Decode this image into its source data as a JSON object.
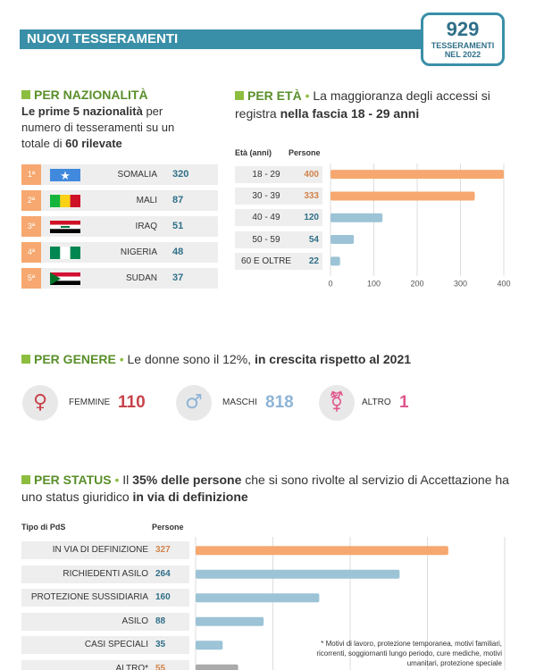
{
  "header": {
    "title": "NUOVI TESSERAMENTI",
    "total_value": "929",
    "total_label_1": "TESSERAMENTI",
    "total_label_2": "NEL 2022"
  },
  "nationality": {
    "heading": "PER NAZIONALITÀ",
    "desc_bold_1": "Le prime 5 nazionalità",
    "desc_text_1": " per numero di tesseramenti su un totale di ",
    "desc_bold_2": "60 rilevate",
    "rows": [
      {
        "rank": "1ª",
        "flag": "somalia-flag-icon",
        "name": "SOMALIA",
        "value": "320"
      },
      {
        "rank": "2ª",
        "flag": "mali-flag-icon",
        "name": "MALI",
        "value": "87"
      },
      {
        "rank": "3ª",
        "flag": "iraq-flag-icon",
        "name": "IRAQ",
        "value": "51"
      },
      {
        "rank": "4ª",
        "flag": "nigeria-flag-icon",
        "name": "NIGERIA",
        "value": "48"
      },
      {
        "rank": "5ª",
        "flag": "sudan-flag-icon",
        "name": "SUDAN",
        "value": "37"
      }
    ]
  },
  "age": {
    "heading": "PER ETÀ",
    "text_1": "La maggioranza degli accessi si registra ",
    "text_bold": "nella fascia 18 - 29 anni",
    "col_1": "Età (anni)",
    "col_2": "Persone"
  },
  "gender": {
    "heading": "PER GENERE",
    "text_1": "Le donne sono il 12%, ",
    "text_bold": "in crescita rispetto al 2021",
    "items": [
      {
        "label": "FEMMINE",
        "value": "110",
        "icon": "female-symbol-icon"
      },
      {
        "label": "MASCHI",
        "value": "818",
        "icon": "male-symbol-icon"
      },
      {
        "label": "ALTRO",
        "value": "1",
        "icon": "transgender-symbol-icon"
      }
    ]
  },
  "status": {
    "heading": "PER STATUS",
    "text_1": "Il ",
    "text_bold_1": "35% delle persone",
    "text_2": " che si sono rivolte al servizio di Accettazione ha uno status giuridico ",
    "text_bold_2": "in via di definizione",
    "col_1": "Tipo di PdS",
    "col_2": "Persone",
    "footnote": "* Motivi di lavoro, protezione temporanea, motivi familiari, ricorrenti, soggiornanti lungo periodo, cure mediche, motivi umanitari, protezione speciale"
  },
  "colors": {
    "highlight": "#f6a870",
    "normal": "#9cc3d6",
    "other": "#aaaaaa",
    "female": "#c8434b",
    "male": "#8fb4d6",
    "altro": "#e0578c"
  },
  "chart_data": [
    {
      "type": "bar",
      "orientation": "horizontal",
      "categories": [
        "18 - 29",
        "30 - 39",
        "40 - 49",
        "50 - 59",
        "60 E OLTRE"
      ],
      "values": [
        400,
        333,
        120,
        54,
        22
      ],
      "xlim": [
        0,
        400
      ],
      "xticks": [
        0,
        100,
        200,
        300,
        400
      ],
      "grid": true
    },
    {
      "type": "bar",
      "orientation": "horizontal",
      "categories": [
        "IN VIA DI DEFINIZIONE",
        "RICHIEDENTI ASILO",
        "PROTEZIONE SUSSIDIARIA",
        "ASILO",
        "CASI SPECIALI",
        "ALTRO*"
      ],
      "values": [
        327,
        264,
        160,
        88,
        35,
        55
      ],
      "xlim": [
        0,
        400
      ],
      "grid": true
    }
  ]
}
